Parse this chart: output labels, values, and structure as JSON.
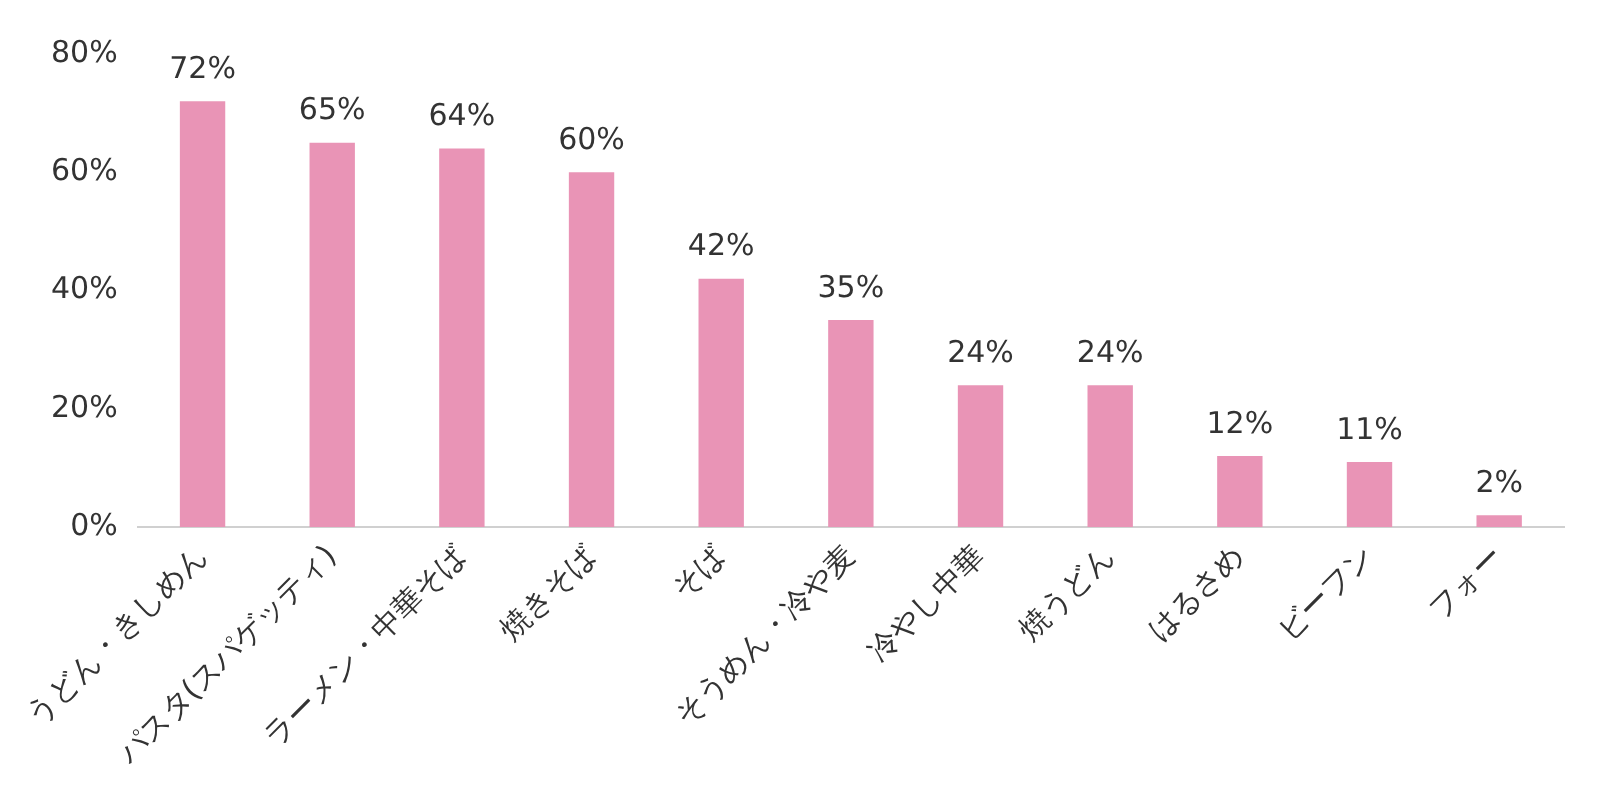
{
  "chart_data": {
    "type": "bar",
    "categories": [
      "うどん・きしめん",
      "パスタ(スパゲッティ)",
      "ラーメン・中華そば",
      "焼きそば",
      "そば",
      "そうめん・冷や麦",
      "冷やし中華",
      "焼うどん",
      "はるさめ",
      "ビーフン",
      "フォー"
    ],
    "values": [
      72,
      65,
      64,
      60,
      42,
      35,
      24,
      24,
      12,
      11,
      2
    ],
    "value_labels": [
      "72%",
      "65%",
      "64%",
      "60%",
      "42%",
      "35%",
      "24%",
      "24%",
      "12%",
      "11%",
      "2%"
    ],
    "color": "#e994b6",
    "ylim": [
      0,
      80
    ],
    "yticks": [
      {
        "value": 0,
        "label": "0%"
      },
      {
        "value": 20,
        "label": "20%"
      },
      {
        "value": 40,
        "label": "40%"
      },
      {
        "value": 60,
        "label": "60%"
      },
      {
        "value": 80,
        "label": "80%"
      }
    ],
    "grid": false,
    "legend": false
  }
}
